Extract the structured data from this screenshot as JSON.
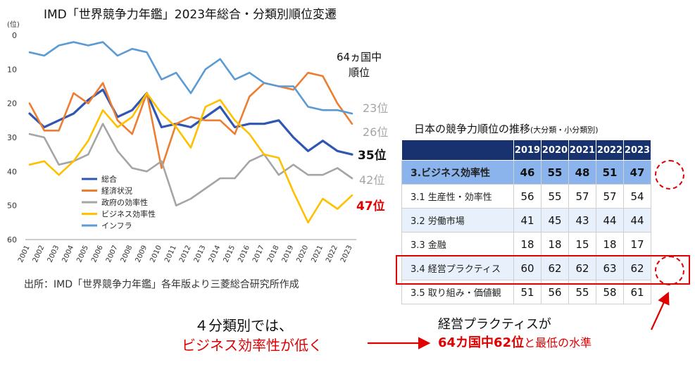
{
  "header": {
    "title": "IMD「世界競争力年鑑」2023年総合・分類別順位変遷",
    "unit": "(位)",
    "countries_note": [
      "64ヵ国中",
      "順位"
    ]
  },
  "chart_data": {
    "type": "line",
    "title": "IMD「世界競争力年鑑」2023年総合・分類別順位変遷",
    "y_unit": "(位)",
    "ylim": [
      60,
      0
    ],
    "yticks": [
      0,
      10,
      20,
      30,
      40,
      50,
      60
    ],
    "y_inverted": true,
    "grid": false,
    "legend_position": "lower-left",
    "categories": [
      "2001",
      "2002",
      "2003",
      "2004",
      "2005",
      "2006",
      "2007",
      "2008",
      "2009",
      "2010",
      "2011",
      "2012",
      "2013",
      "2014",
      "2015",
      "2016",
      "2017",
      "2018",
      "2019",
      "2020",
      "2021",
      "2022",
      "2023"
    ],
    "series": [
      {
        "name": "総合",
        "color": "#2f56b3",
        "bold": true,
        "end_label": "35位",
        "values": [
          23,
          27,
          25,
          23,
          19,
          16,
          24,
          22,
          17,
          27,
          26,
          27,
          24,
          21,
          27,
          26,
          26,
          25,
          30,
          34,
          31,
          34,
          35
        ]
      },
      {
        "name": "経済状況",
        "color": "#ed7d31",
        "bold": false,
        "end_label": "26位",
        "values": [
          20,
          28,
          28,
          17,
          20,
          14,
          25,
          29,
          17,
          39,
          26,
          24,
          25,
          25,
          29,
          18,
          14,
          15,
          16,
          11,
          12,
          20,
          26
        ]
      },
      {
        "name": "政府の効率性",
        "color": "#a5a5a5",
        "bold": false,
        "end_label": "42位",
        "values": [
          29,
          30,
          38,
          37,
          35,
          26,
          34,
          39,
          40,
          37,
          50,
          48,
          45,
          42,
          42,
          37,
          35,
          41,
          38,
          41,
          41,
          39,
          42
        ]
      },
      {
        "name": "ビジネス効率性",
        "color": "#ffc000",
        "bold": false,
        "end_label": "47位",
        "values": [
          38,
          37,
          41,
          37,
          31,
          22,
          27,
          24,
          17,
          23,
          27,
          33,
          21,
          19,
          25,
          29,
          35,
          36,
          46,
          55,
          48,
          51,
          47
        ]
      },
      {
        "name": "インフラ",
        "color": "#5b9bd5",
        "bold": false,
        "end_label": "23位",
        "values": [
          5,
          6,
          3,
          2,
          3,
          2,
          6,
          4,
          5,
          13,
          11,
          17,
          10,
          7,
          13,
          11,
          14,
          15,
          15,
          21,
          22,
          22,
          23
        ]
      }
    ]
  },
  "end_labels": {
    "infra": "23位",
    "economy": "26位",
    "overall": "35位",
    "government": "42位",
    "business": "47位"
  },
  "source": "出所：IMD「世界競争力年鑑」各年版より三菱総合研究所作成",
  "table": {
    "title": "日本の競争力順位の推移",
    "subtitle": "(大分類・小分類別)",
    "years": [
      "2019",
      "2020",
      "2021",
      "2022",
      "2023"
    ],
    "rows": [
      {
        "label": "3.ビジネス効率性",
        "values": [
          "46",
          "55",
          "48",
          "51",
          "47"
        ]
      },
      {
        "label": "3.1 生産性・効率性",
        "values": [
          "56",
          "55",
          "57",
          "57",
          "54"
        ]
      },
      {
        "label": "3.2 労働市場",
        "values": [
          "41",
          "45",
          "43",
          "44",
          "44"
        ]
      },
      {
        "label": "3.3 金融",
        "values": [
          "18",
          "18",
          "15",
          "18",
          "17"
        ]
      },
      {
        "label": "3.4 経営プラクティス",
        "values": [
          "60",
          "62",
          "62",
          "63",
          "62"
        ]
      },
      {
        "label": "3.5 取り組み・価値観",
        "values": [
          "51",
          "56",
          "55",
          "58",
          "61"
        ]
      }
    ]
  },
  "annotation": {
    "left_line1": "４分類別では、",
    "left_line2": "ビジネス効率性が低く",
    "right_line1": "経営プラクティスが",
    "right_line2_main": "64カ国中62位",
    "right_line2_suffix": "と最低の水準"
  },
  "colors": {
    "header_bg": "#17326e",
    "highlight_row": "#8cb4ec",
    "light_row": "#e8f0fb",
    "accent_red": "#e00000"
  }
}
